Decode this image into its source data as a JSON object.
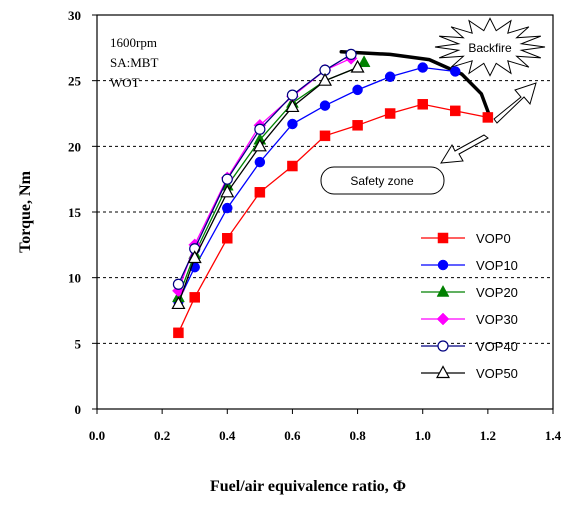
{
  "chart_data": {
    "type": "line",
    "title": "",
    "xlabel": "Fuel/air equivalence ratio, Φ",
    "ylabel": "Torque, Nm",
    "xlim": [
      0.0,
      1.4
    ],
    "ylim": [
      0,
      30
    ],
    "xticks": [
      0.0,
      0.2,
      0.4,
      0.6,
      0.8,
      1.0,
      1.2,
      1.4
    ],
    "xtick_labels": [
      "0.0",
      "0.2",
      "0.4",
      "0.6",
      "0.8",
      "1.0",
      "1.2",
      "1.4"
    ],
    "yticks": [
      0,
      5,
      10,
      15,
      20,
      25,
      30
    ],
    "ytick_labels": [
      "0",
      "5",
      "10",
      "15",
      "20",
      "25",
      "30"
    ],
    "grid": "horizontal-dashed",
    "legend_position": "lower-right",
    "conditions": [
      "1600rpm",
      "SA:MBT",
      "WOT"
    ],
    "annotations": {
      "backfire": "Backfire",
      "safety_zone": "Safety zone"
    },
    "boundary_curve": {
      "x": [
        0.75,
        0.9,
        1.02,
        1.12,
        1.18,
        1.21
      ],
      "y": [
        27.2,
        27.0,
        26.6,
        25.5,
        24.0,
        22.0
      ]
    },
    "series": [
      {
        "name": "VOP0",
        "marker": "square",
        "color": "#ff0000",
        "x": [
          0.25,
          0.3,
          0.4,
          0.5,
          0.6,
          0.7,
          0.8,
          0.9,
          1.0,
          1.1,
          1.2
        ],
        "y": [
          5.8,
          8.5,
          13.0,
          16.5,
          18.5,
          20.8,
          21.6,
          22.5,
          23.2,
          22.7,
          22.2
        ]
      },
      {
        "name": "VOP10",
        "marker": "circle",
        "color": "#0000ff",
        "x": [
          0.25,
          0.3,
          0.4,
          0.5,
          0.6,
          0.7,
          0.8,
          0.9,
          1.0,
          1.1
        ],
        "y": [
          8.2,
          10.8,
          15.3,
          18.8,
          21.7,
          23.1,
          24.3,
          25.3,
          26.0,
          25.7
        ]
      },
      {
        "name": "VOP20",
        "marker": "triangle",
        "color": "#008000",
        "x": [
          0.25,
          0.3,
          0.4,
          0.5,
          0.6,
          0.7,
          0.8,
          0.82
        ],
        "y": [
          8.5,
          11.8,
          17.0,
          20.5,
          23.3,
          25.0,
          26.0,
          26.4
        ]
      },
      {
        "name": "VOP30",
        "marker": "diamond",
        "color": "#ff00ff",
        "x": [
          0.25,
          0.3,
          0.4,
          0.5,
          0.6,
          0.7,
          0.78
        ],
        "y": [
          9.0,
          12.5,
          17.6,
          21.6,
          23.8,
          25.8,
          26.7
        ]
      },
      {
        "name": "VOP40",
        "marker": "open-circle",
        "color": "#000080",
        "x": [
          0.25,
          0.3,
          0.4,
          0.5,
          0.6,
          0.7,
          0.78
        ],
        "y": [
          9.5,
          12.2,
          17.5,
          21.3,
          23.9,
          25.8,
          27.0
        ]
      },
      {
        "name": "VOP50",
        "marker": "open-triangle",
        "color": "#000000",
        "x": [
          0.25,
          0.3,
          0.4,
          0.5,
          0.6,
          0.7,
          0.8
        ],
        "y": [
          8.0,
          11.5,
          16.5,
          20.0,
          23.0,
          25.0,
          26.0
        ]
      }
    ]
  }
}
